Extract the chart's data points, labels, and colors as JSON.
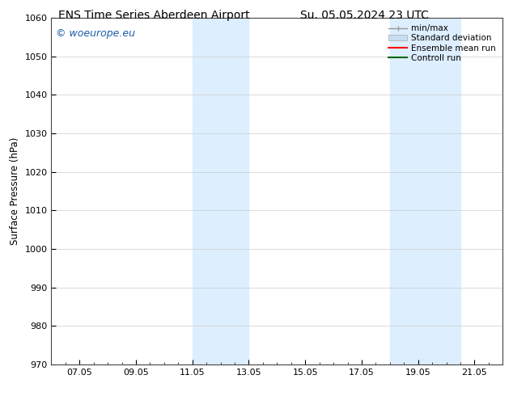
{
  "title_left": "ENS Time Series Aberdeen Airport",
  "title_right": "Su. 05.05.2024 23 UTC",
  "ylabel": "Surface Pressure (hPa)",
  "ylim": [
    970,
    1060
  ],
  "yticks": [
    970,
    980,
    990,
    1000,
    1010,
    1020,
    1030,
    1040,
    1050,
    1060
  ],
  "xtick_labels": [
    "07.05",
    "09.05",
    "11.05",
    "13.05",
    "15.05",
    "17.05",
    "19.05",
    "21.05"
  ],
  "xtick_positions": [
    1,
    3,
    5,
    7,
    9,
    11,
    13,
    15
  ],
  "xmin": 0,
  "xmax": 16,
  "shaded_regions": [
    {
      "xmin": 5,
      "xmax": 7,
      "color": "#ddeeff"
    },
    {
      "xmin": 12,
      "xmax": 14.5,
      "color": "#ddeeff"
    }
  ],
  "watermark_text": "© woeurope.eu",
  "watermark_color": "#1a5ca8",
  "legend_labels": [
    "min/max",
    "Standard deviation",
    "Ensemble mean run",
    "Controll run"
  ],
  "legend_colors": [
    "#aaaaaa",
    "#c8ddf0",
    "red",
    "green"
  ],
  "bg_color": "#ffffff",
  "grid_color": "#cccccc",
  "title_fontsize": 10,
  "tick_fontsize": 8,
  "label_fontsize": 8.5,
  "legend_fontsize": 7.5,
  "watermark_fontsize": 9
}
